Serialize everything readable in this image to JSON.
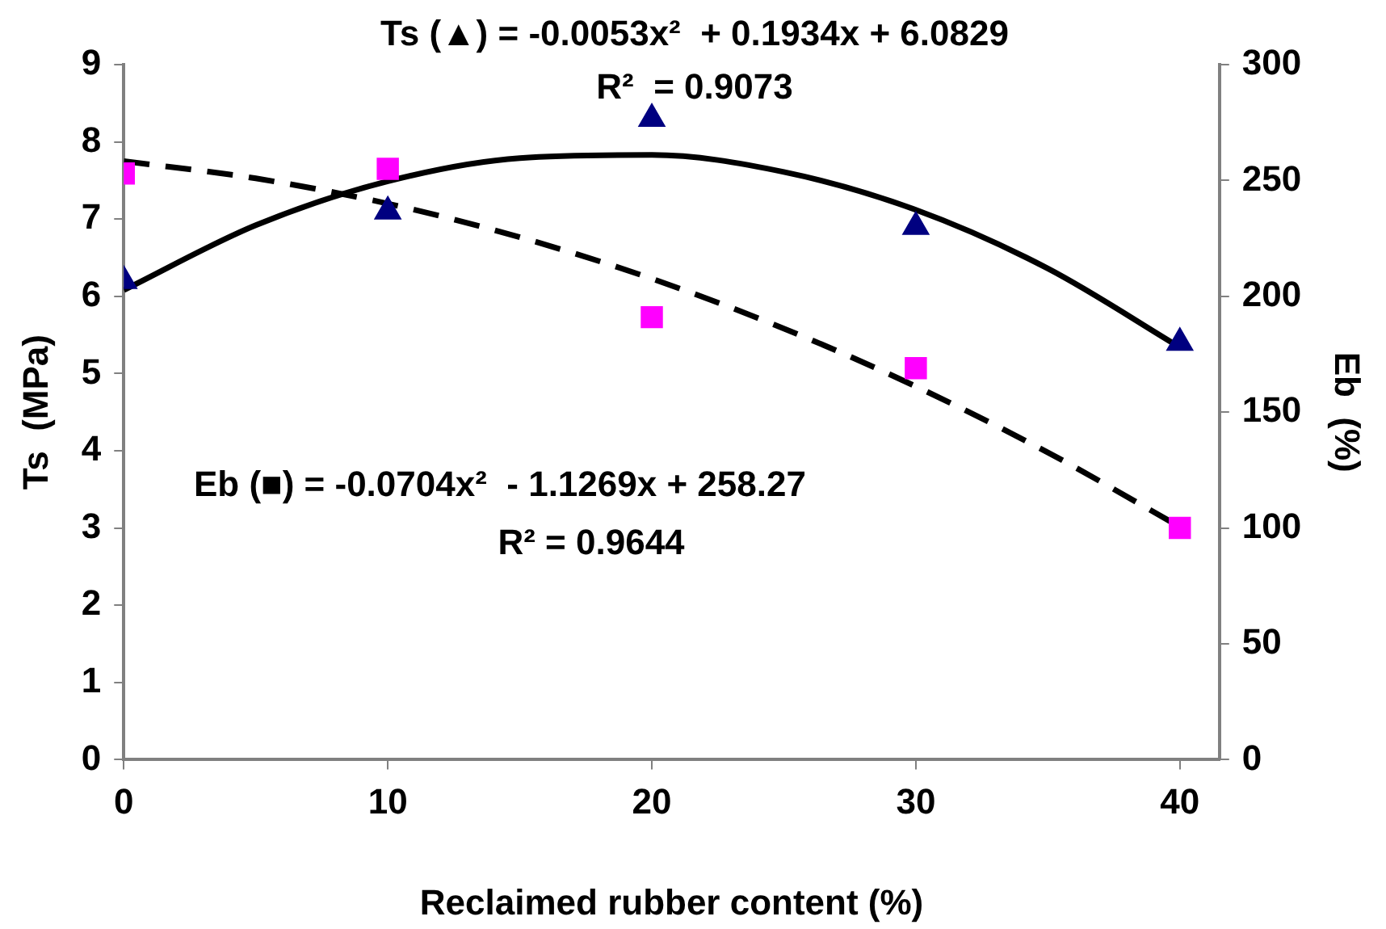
{
  "chart_data": {
    "type": "scatter",
    "xlabel": "Reclaimed rubber content (%)",
    "ylabel": "Ts  (MPa)",
    "y2label": "Eb  (%)",
    "annotations": [
      "Ts (▲) = -0.0053x²  + 0.1934x + 6.0829",
      "R²  = 0.9073",
      "Eb (■) = -0.0704x²  - 1.1269x + 258.27",
      "R² = 0.9644"
    ],
    "x": [
      0,
      10,
      20,
      30,
      40
    ],
    "series": [
      {
        "type": "scatter",
        "color": "#000080",
        "marker": "triangle",
        "axis": "y",
        "values": [
          6.2,
          7.1,
          8.3,
          6.9,
          5.4
        ]
      },
      {
        "type": "scatter",
        "color": "#ff00ff",
        "marker": "square",
        "axis": "y2",
        "values": [
          253,
          255,
          191,
          169,
          100
        ]
      },
      {
        "type": "line",
        "color": "#000000",
        "marker": "none",
        "line_style": "solid",
        "axis": "y",
        "x": [
          0,
          5,
          10,
          15,
          20,
          25,
          30,
          35,
          40
        ],
        "values": [
          6.08,
          6.92,
          7.49,
          7.79,
          7.83,
          7.61,
          7.12,
          6.36,
          5.34
        ]
      },
      {
        "type": "line",
        "color": "#000000",
        "marker": "none",
        "line_style": "dashed",
        "axis": "y2",
        "x": [
          0,
          5,
          10,
          15,
          20,
          25,
          30,
          35,
          40
        ],
        "values": [
          258.3,
          250.9,
          240.0,
          225.5,
          207.6,
          186.1,
          161.1,
          132.6,
          100.5
        ]
      }
    ],
    "xlim": [
      0,
      41.5
    ],
    "xticks": [
      0,
      10,
      20,
      30,
      40
    ],
    "ylim": [
      0,
      9
    ],
    "yticks": [
      0,
      1,
      2,
      3,
      4,
      5,
      6,
      7,
      8,
      9
    ],
    "y2lim": [
      0,
      300
    ],
    "y2ticks": [
      0,
      50,
      100,
      150,
      200,
      250,
      300
    ],
    "grid": false,
    "legend": false
  }
}
